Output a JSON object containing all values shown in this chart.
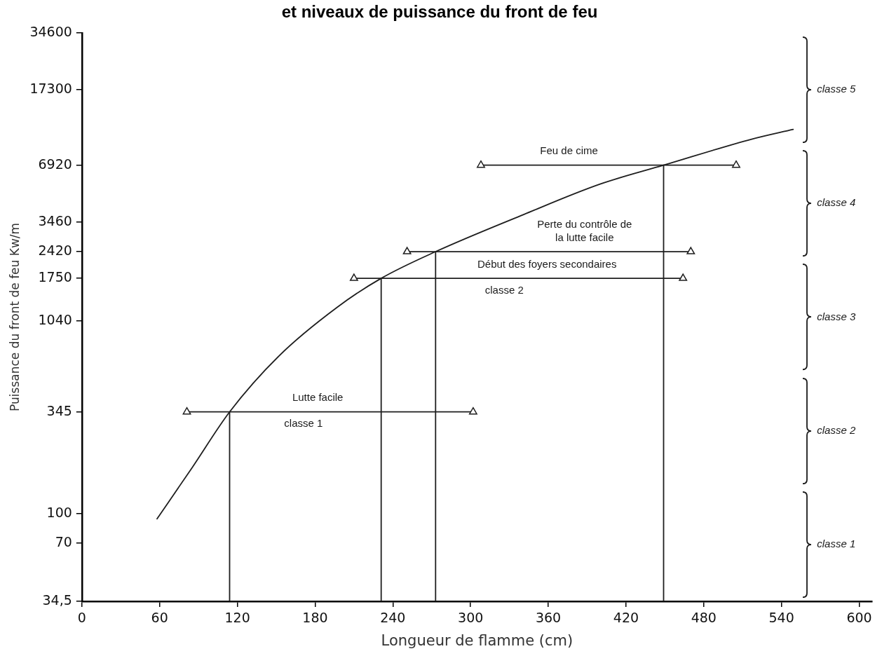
{
  "chart_data": {
    "type": "line",
    "title": "et niveaux de puissance du front de feu",
    "xlabel": "Longueur de flamme (cm)",
    "ylabel": "Puissance du front de feu Kw/m",
    "log": "y",
    "xlim": [
      0,
      610
    ],
    "xticks": [
      0,
      60,
      120,
      180,
      240,
      300,
      360,
      420,
      480,
      540,
      600
    ],
    "ylim": [
      34.5,
      34600
    ],
    "yticks": [
      {
        "value": 34.5,
        "label": "34,5"
      },
      70,
      100,
      345,
      1040,
      1750,
      2420,
      3460,
      6920,
      17300,
      34600
    ],
    "series": [
      {
        "color": "#1e1e1e",
        "x": [
          58,
          85,
          114,
          152,
          197,
          231,
          273,
          341,
          400,
          449,
          517,
          549
        ],
        "values": [
          94,
          175,
          345,
          680,
          1230,
          1750,
          2420,
          3800,
          5500,
          6920,
          9500,
          10700
        ]
      },
      {
        "color": "#1e1e1e",
        "marker": "triangle",
        "x": [
          81,
          302
        ],
        "values": [
          345,
          345
        ]
      },
      {
        "color": "#1e1e1e",
        "marker": "triangle",
        "x": [
          210,
          464
        ],
        "values": [
          1750,
          1750
        ]
      },
      {
        "color": "#1e1e1e",
        "marker": "triangle",
        "x": [
          251,
          470
        ],
        "values": [
          2420,
          2420
        ]
      },
      {
        "color": "#1e1e1e",
        "marker": "triangle",
        "x": [
          308,
          505
        ],
        "values": [
          6920,
          6920
        ]
      },
      {
        "color": "#1e1e1e",
        "x": [
          114,
          114
        ],
        "values": [
          34.5,
          345
        ]
      },
      {
        "color": "#1e1e1e",
        "x": [
          231,
          231
        ],
        "values": [
          34.5,
          1750
        ]
      },
      {
        "color": "#1e1e1e",
        "x": [
          273,
          273
        ],
        "values": [
          34.5,
          2420
        ]
      },
      {
        "color": "#1e1e1e",
        "x": [
          449,
          449
        ],
        "values": [
          34.5,
          6920
        ]
      }
    ],
    "annotations": [
      {
        "text": "Feu de cime",
        "x": 376,
        "y": 6920
      },
      {
        "text": "Perte du contrôle de\nla lutte facile",
        "x": 388,
        "y": 2420
      },
      {
        "text": "Début des foyers secondaires",
        "x": 359,
        "y": 1750
      },
      {
        "text": "classe 2",
        "x": 326,
        "y": 1750
      },
      {
        "text": "Lutte facile",
        "x": 182,
        "y": 345
      },
      {
        "text": "classe 1",
        "x": 171,
        "y": 345
      },
      "classe 5",
      "classe 4",
      "classe 3",
      "classe 2",
      "classe 1"
    ]
  }
}
